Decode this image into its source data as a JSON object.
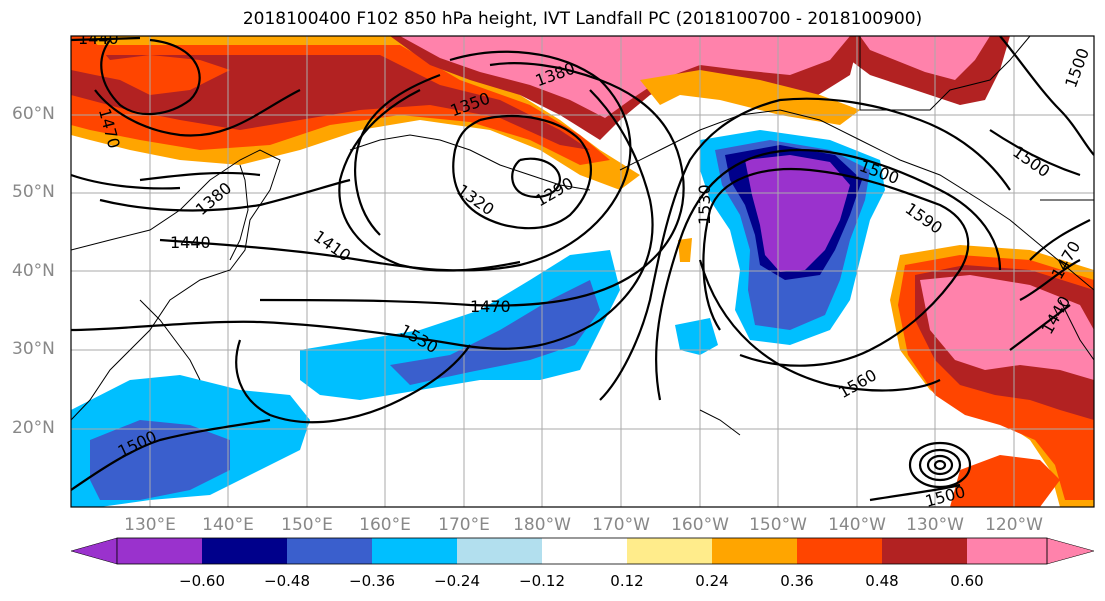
{
  "title": "2018100400 F102 850 hPa height, IVT Landfall PC (2018100700 - 2018100900)",
  "lat_labels": [
    "60°N",
    "50°N",
    "40°N",
    "30°N",
    "20°N"
  ],
  "lon_labels": [
    "130°E",
    "140°E",
    "150°E",
    "160°E",
    "170°E",
    "180°W",
    "170°W",
    "160°W",
    "150°W",
    "140°W",
    "130°W",
    "120°W"
  ],
  "contour_labels": [
    "1440",
    "1470",
    "1380",
    "1350",
    "1320",
    "1290",
    "1380",
    "1440",
    "1410",
    "1470",
    "1530",
    "1500",
    "1530",
    "1500",
    "1500",
    "1590",
    "1560",
    "1470",
    "1440",
    "1500",
    "1500"
  ],
  "colorbar": {
    "tick_labels": [
      "−0.60",
      "−0.48",
      "−0.36",
      "−0.24",
      "−0.12",
      "0.12",
      "0.24",
      "0.36",
      "0.48",
      "0.60"
    ],
    "colors": [
      "#9a32cd",
      "#00008b",
      "#3a5fcd",
      "#00bfff",
      "#b2dfee",
      "#ffffff",
      "#ffec8b",
      "#ffa500",
      "#ff4500",
      "#b22222",
      "#ff82ab"
    ]
  }
}
